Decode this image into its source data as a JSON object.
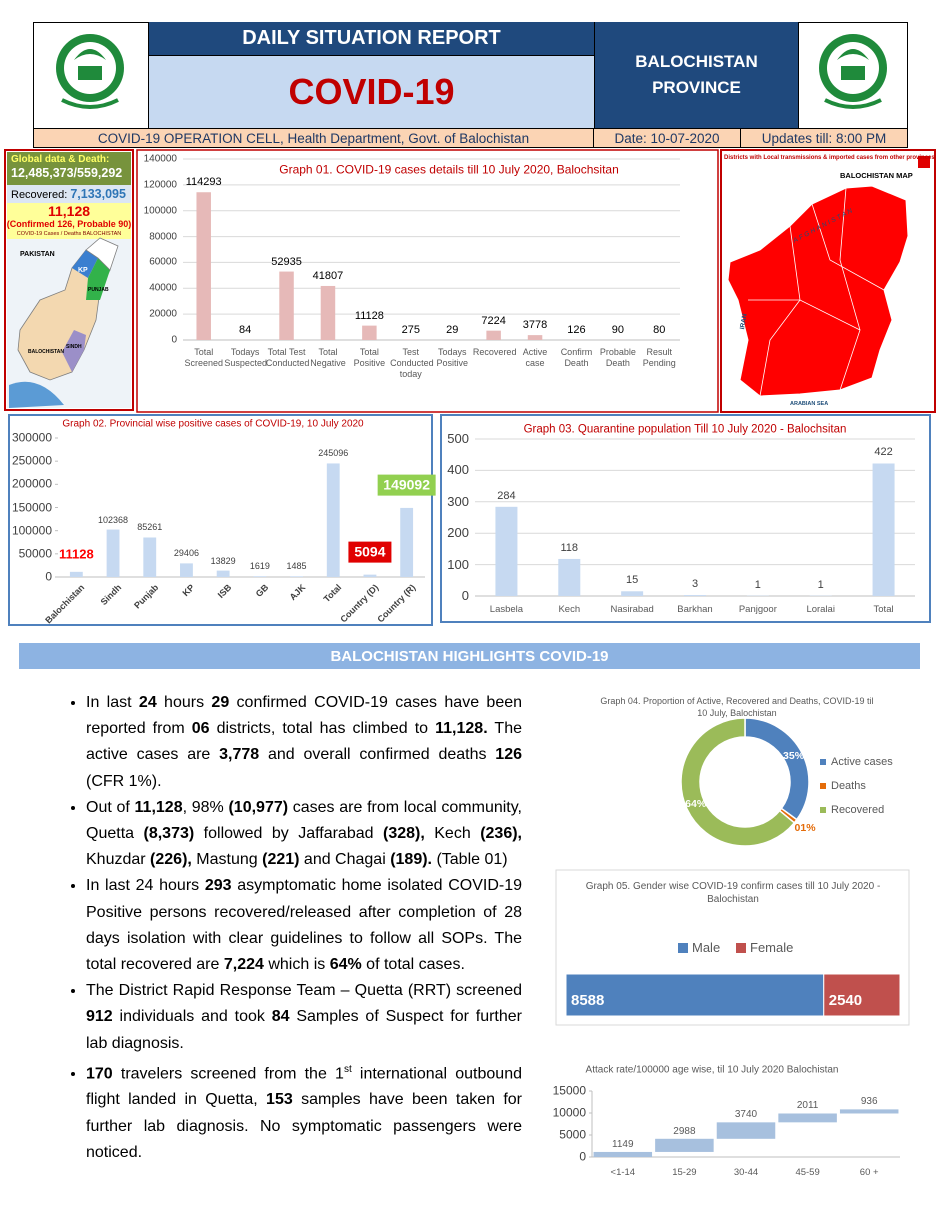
{
  "header": {
    "title": "DAILY SITUATION REPORT",
    "subtitle": "COVID-19",
    "province": "BALOCHISTAN PROVINCE",
    "cell": "COVID-19 OPERATION CELL, Health Department, Govt. of Balochistan",
    "date": "Date: 10-07-2020",
    "updates": "Updates till: 8:00 PM"
  },
  "global_box": {
    "heading": "Global data & Death:",
    "global": "12,485,373/559,292",
    "recovered_label": "Recovered:",
    "recovered": "7,133,095",
    "local": "11,128",
    "local_detail": "(Confirmed 126, Probable 90)",
    "caption": "COVID-19 Cases / Deaths BALOCHISTAN",
    "map_labels": [
      "PAKISTAN",
      "KP",
      "PUNJAB",
      "SINDH",
      "BALOCHISTAN"
    ]
  },
  "province_map": {
    "title": "Districts with Local transmissions & imported cases from other provinces",
    "heading": "BALOCHISTAN MAP",
    "labels": [
      "AFGHANISTAN",
      "IRAN",
      "ARABIAN SEA"
    ]
  },
  "graphs": [
    {
      "type": "bar",
      "title": "Graph 01. COVID-19 cases details till 10 July 2020, Balochsitan",
      "categories": [
        "Total Screened",
        "Todays Suspected",
        "Total Test Conducted",
        "Total Negative",
        "Total Positive",
        "Test Conducted today",
        "Todays Positive",
        "Recovered",
        "Active case",
        "Confirm Death",
        "Probable Death",
        "Result Pending"
      ],
      "values": [
        114293,
        84,
        52935,
        41807,
        11128,
        275,
        29,
        7224,
        3778,
        126,
        90,
        80
      ],
      "color": "#e6b9b8",
      "ylim": [
        0,
        140000
      ],
      "yticks": [
        0,
        20000,
        40000,
        60000,
        80000,
        100000,
        120000,
        140000
      ],
      "grid": true
    },
    {
      "type": "bar",
      "title": "Graph 02. Provincial wise positive cases of COVID-19, 10 July 2020",
      "categories": [
        "Balochistan",
        "Sindh",
        "Punjab",
        "KP",
        "ISB",
        "GB",
        "AJK",
        "Total",
        "Country (D)",
        "Country (R)"
      ],
      "values": [
        11128,
        102368,
        85261,
        29406,
        13829,
        1619,
        1485,
        245096,
        5094,
        149092
      ],
      "color": "#c6d9f1",
      "label_color": [
        "#ff0000",
        null,
        null,
        null,
        null,
        null,
        null,
        null,
        "#ffffff",
        "#ffffff"
      ],
      "label_background": [
        null,
        null,
        null,
        null,
        null,
        null,
        null,
        null,
        "#e00000",
        "#92d050"
      ],
      "ylim": [
        0,
        300000
      ],
      "yticks": [
        0,
        50000,
        100000,
        150000,
        200000,
        250000,
        300000
      ],
      "grid": false
    },
    {
      "type": "bar",
      "title": "Graph 03. Quarantine population Till 10 July 2020 - Balochsitan",
      "categories": [
        "Lasbela",
        "Kech",
        "Nasirabad",
        "Barkhan",
        "Panjgoor",
        "Loralai",
        "Total"
      ],
      "values": [
        284,
        118,
        15,
        3,
        1,
        1,
        422
      ],
      "color": "#c6d9f1",
      "ylim": [
        0,
        500
      ],
      "yticks": [
        0,
        100,
        200,
        300,
        400,
        500
      ],
      "grid": true
    },
    {
      "type": "donut",
      "title": "Graph 04.  Proportion of Active, Recovered and Deaths, COVID-19 til 10 July, Balochistan",
      "categories": [
        "Active cases",
        "Deaths",
        "Recovered"
      ],
      "values": [
        35,
        1,
        64
      ],
      "value_labels": [
        "35%",
        "01%",
        "64%"
      ],
      "colors": [
        "#4f81bd",
        "#e46c0a",
        "#9bbb59"
      ]
    },
    {
      "type": "stacked_bar",
      "title": "Graph 05. Gender wise COVID-19 confirm cases till 10 July  2020 - Balochistan",
      "series": [
        {
          "name": "Male",
          "color": "#4f81bd",
          "values": [
            8588
          ]
        },
        {
          "name": "Female",
          "color": "#c0504d",
          "values": [
            2540
          ]
        }
      ]
    },
    {
      "type": "waterfall",
      "title": "Attack rate/100000 age wise, til 10 July 2020 Balochistan",
      "categories": [
        "<1-14",
        "15-29",
        "30-44",
        "45-59",
        "60 +"
      ],
      "values": [
        1149,
        2988,
        3740,
        2011,
        936
      ],
      "color": "#a7c0de",
      "ylim": [
        0,
        15000
      ],
      "yticks": [
        0,
        5000,
        10000,
        15000
      ],
      "grid": false
    }
  ],
  "highlights": {
    "title": "BALOCHISTAN HIGHLIGHTS COVID-19",
    "bullets": [
      [
        {
          "text": "In last "
        },
        {
          "text": "24",
          "bold": true
        },
        {
          "text": " hours "
        },
        {
          "text": "29",
          "bold": true
        },
        {
          "text": " confirmed COVID-19 cases have been reported from "
        },
        {
          "text": "06",
          "bold": true
        },
        {
          "text": " districts, total has climbed to "
        },
        {
          "text": "11,128.",
          "bold": true
        },
        {
          "text": " The active cases are "
        },
        {
          "text": "3,778",
          "bold": true
        },
        {
          "text": " and overall confirmed deaths "
        },
        {
          "text": "126",
          "bold": true
        },
        {
          "text": " (CFR 1%)."
        }
      ],
      [
        {
          "text": "Out of "
        },
        {
          "text": "11,128",
          "bold": true
        },
        {
          "text": ", 98% "
        },
        {
          "text": "(10,977)",
          "bold": true
        },
        {
          "text": " cases are from local community, Quetta "
        },
        {
          "text": "(8,373)",
          "bold": true
        },
        {
          "text": " followed by Jaffarabad "
        },
        {
          "text": "(328),",
          "bold": true
        },
        {
          "text": " Kech "
        },
        {
          "text": "(236),",
          "bold": true
        },
        {
          "text": " Khuzdar "
        },
        {
          "text": "(226),",
          "bold": true
        },
        {
          "text": " Mastung "
        },
        {
          "text": "(221)",
          "bold": true
        },
        {
          "text": " and Chagai "
        },
        {
          "text": "(189).",
          "bold": true
        },
        {
          "text": " (Table 01)"
        }
      ],
      [
        {
          "text": "In last 24 hours "
        },
        {
          "text": "293",
          "bold": true
        },
        {
          "text": " asymptomatic home isolated COVID-19 Positive persons recovered/released after completion of 28 days isolation with clear guidelines to follow all SOPs. The total recovered are "
        },
        {
          "text": "7,224",
          "bold": true
        },
        {
          "text": " which is "
        },
        {
          "text": "64%",
          "bold": true
        },
        {
          "text": " of total cases."
        }
      ],
      [
        {
          "text": "The District Rapid Response Team – Quetta (RRT) screened "
        },
        {
          "text": "912",
          "bold": true
        },
        {
          "text": " individuals and took "
        },
        {
          "text": "84",
          "bold": true
        },
        {
          "text": " Samples of Suspect for further lab diagnosis."
        }
      ],
      [
        {
          "text": "170",
          "bold": true
        },
        {
          "text": " travelers screened from the 1"
        },
        {
          "text": "st",
          "sup": true
        },
        {
          "text": " international outbound flight landed in Quetta, "
        },
        {
          "text": "153",
          "bold": true
        },
        {
          "text": " samples have been taken for further lab diagnosis. No symptomatic passengers were noticed."
        }
      ]
    ]
  }
}
